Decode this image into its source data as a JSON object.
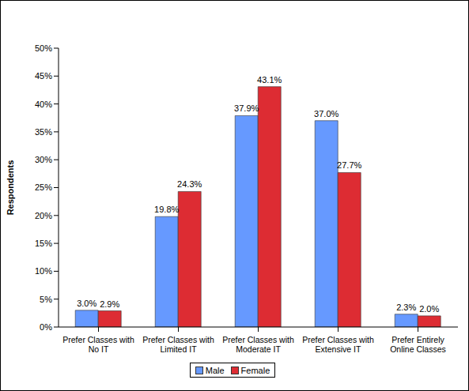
{
  "chart_data": {
    "type": "bar",
    "y_label": "Respondents",
    "categories": [
      "Prefer Classes with No IT",
      "Prefer Classes with Limited IT",
      "Prefer Classes with Moderate IT",
      "Prefer Classes with Extensive IT",
      "Prefer Entirely Online Classes"
    ],
    "series": [
      {
        "name": "Male",
        "color": "#6699FF",
        "values": [
          3.0,
          19.8,
          37.9,
          37.0,
          2.3
        ],
        "value_labels": [
          "3.0%",
          "19.8%",
          "37.9%",
          "37.0%",
          "2.3%"
        ]
      },
      {
        "name": "Female",
        "color": "#DD2C33",
        "values": [
          2.9,
          24.3,
          43.1,
          27.7,
          2.0
        ],
        "value_labels": [
          "2.9%",
          "24.3%",
          "43.1%",
          "27.7%",
          "2.0%"
        ]
      }
    ],
    "ylim": [
      0,
      50
    ],
    "yticks": [
      {
        "value": 0,
        "label": "0%"
      },
      {
        "value": 5,
        "label": "5%"
      },
      {
        "value": 10,
        "label": "10%"
      },
      {
        "value": 15,
        "label": "15%"
      },
      {
        "value": 20,
        "label": "20%"
      },
      {
        "value": 25,
        "label": "25%"
      },
      {
        "value": 30,
        "label": "30%"
      },
      {
        "value": 35,
        "label": "35%"
      },
      {
        "value": 40,
        "label": "40%"
      },
      {
        "value": 45,
        "label": "45%"
      },
      {
        "value": 50,
        "label": "50%"
      }
    ],
    "grid": false,
    "legend": "bottom",
    "data_labels": true
  }
}
